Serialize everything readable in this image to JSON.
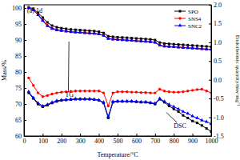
{
  "chart_data": {
    "type": "line",
    "title": "(a) 1d",
    "x_label": "Temperature/°C",
    "y_label": "Mass/%",
    "y2_label": "Endothermic quantity/mw·mg⁻¹",
    "legend": "upper right",
    "annotations": [
      {
        "text": "TG"
      },
      {
        "text": "DSC"
      }
    ],
    "x": [
      25,
      50,
      75,
      100,
      125,
      150,
      175,
      200,
      225,
      250,
      275,
      300,
      325,
      350,
      375,
      400,
      425,
      450,
      475,
      500,
      525,
      550,
      575,
      600,
      625,
      650,
      675,
      700,
      725,
      750,
      775,
      800,
      825,
      850,
      875,
      900,
      925,
      950,
      975,
      1000
    ],
    "xlim": [
      0,
      1000
    ],
    "xticks": [
      0,
      100,
      200,
      300,
      400,
      500,
      600,
      700,
      800,
      900,
      1000
    ],
    "ylim": [
      60,
      101
    ],
    "yticks": [
      60,
      65,
      70,
      75,
      80,
      85,
      90,
      95,
      100
    ],
    "y2lim": [
      -1.5,
      2
    ],
    "y2ticks": [
      {
        "value": -1.5,
        "label": "-1.5"
      },
      {
        "value": -1,
        "label": "-1.0"
      },
      -0.5,
      {
        "value": 0,
        "label": "0.0"
      },
      0.5,
      {
        "value": 1,
        "label": "1.0"
      },
      1.5,
      {
        "value": 2,
        "label": "2.0"
      }
    ],
    "series": [
      {
        "name": "SPO",
        "color": "#000000",
        "marker": "square",
        "values": [
          100.2,
          99.8,
          98.5,
          97,
          95.5,
          94.5,
          94,
          93.7,
          93.5,
          93.3,
          93.2,
          93.1,
          93,
          92.9,
          92.8,
          92.6,
          92.2,
          91.2,
          91,
          90.9,
          90.8,
          90.7,
          90.6,
          90.5,
          90.4,
          90.3,
          90.2,
          90,
          89.2,
          88.9,
          88.8,
          88.7,
          88.6,
          88.5,
          88.4,
          88.3,
          88.2,
          88.1,
          88,
          87.9
        ]
      },
      {
        "name": "SNS4",
        "color": "#ff0000",
        "marker": "circle",
        "values": [
          100,
          99.5,
          98,
          96.2,
          94.6,
          93.7,
          93.3,
          93,
          92.8,
          92.6,
          92.5,
          92.4,
          92.3,
          92.2,
          92.1,
          91.9,
          91.5,
          90.5,
          90.3,
          90.2,
          90.1,
          90,
          89.9,
          89.8,
          89.7,
          89.6,
          89.5,
          89.3,
          88.4,
          88.1,
          88,
          87.9,
          87.8,
          87.7,
          87.6,
          87.5,
          87.4,
          87.3,
          87.2,
          87.1
        ]
      },
      {
        "name": "SNC2",
        "color": "#0000ff",
        "marker": "triangle",
        "values": [
          100,
          99.4,
          97.8,
          96,
          94.4,
          93.5,
          93.1,
          92.9,
          92.7,
          92.5,
          92.4,
          92.3,
          92.2,
          92.1,
          92,
          91.8,
          91.4,
          90.4,
          90.2,
          90.1,
          90,
          89.9,
          89.8,
          89.7,
          89.6,
          89.5,
          89.4,
          89.2,
          88.3,
          88,
          87.9,
          87.8,
          87.7,
          87.6,
          87.5,
          87.4,
          87.3,
          87.2,
          87.1,
          87
        ]
      },
      {
        "name": "SPO",
        "color": "#000000",
        "marker": "square",
        "axis": "y2",
        "values": [
          -0.35,
          -0.5,
          -0.65,
          -0.72,
          -0.68,
          -0.62,
          -0.58,
          -0.55,
          -0.54,
          -0.53,
          -0.52,
          -0.52,
          -0.52,
          -0.52,
          -0.53,
          -0.55,
          -0.62,
          -1.02,
          -0.6,
          -0.58,
          -0.58,
          -0.58,
          -0.58,
          -0.59,
          -0.6,
          -0.6,
          -0.62,
          -0.65,
          -0.52,
          -0.6,
          -0.7,
          -0.78,
          -0.85,
          -0.95,
          -1.02,
          -1.1,
          -1.15,
          -1.22,
          -1.3,
          -1.38
        ]
      },
      {
        "name": "SNS4",
        "color": "#ff0000",
        "marker": "circle",
        "axis": "y2",
        "values": [
          0.05,
          -0.15,
          -0.35,
          -0.45,
          -0.42,
          -0.38,
          -0.35,
          -0.33,
          -0.32,
          -0.31,
          -0.3,
          -0.3,
          -0.3,
          -0.3,
          -0.3,
          -0.3,
          -0.35,
          -0.7,
          -0.35,
          -0.32,
          -0.32,
          -0.32,
          -0.33,
          -0.33,
          -0.34,
          -0.34,
          -0.35,
          -0.35,
          -0.25,
          -0.3,
          -0.32,
          -0.33,
          -0.33,
          -0.32,
          -0.3,
          -0.28,
          -0.26,
          -0.25,
          -0.3,
          -0.35
        ]
      },
      {
        "name": "SNC2",
        "color": "#0000ff",
        "marker": "triangle",
        "axis": "y2",
        "values": [
          -0.32,
          -0.48,
          -0.62,
          -0.7,
          -0.66,
          -0.6,
          -0.56,
          -0.54,
          -0.53,
          -0.52,
          -0.51,
          -0.51,
          -0.51,
          -0.51,
          -0.52,
          -0.54,
          -0.6,
          -0.98,
          -0.58,
          -0.57,
          -0.57,
          -0.57,
          -0.57,
          -0.58,
          -0.59,
          -0.59,
          -0.61,
          -0.63,
          -0.5,
          -0.58,
          -0.66,
          -0.72,
          -0.78,
          -0.85,
          -0.9,
          -0.97,
          -1.02,
          -1.08,
          -1.12,
          -1.18
        ]
      }
    ]
  }
}
